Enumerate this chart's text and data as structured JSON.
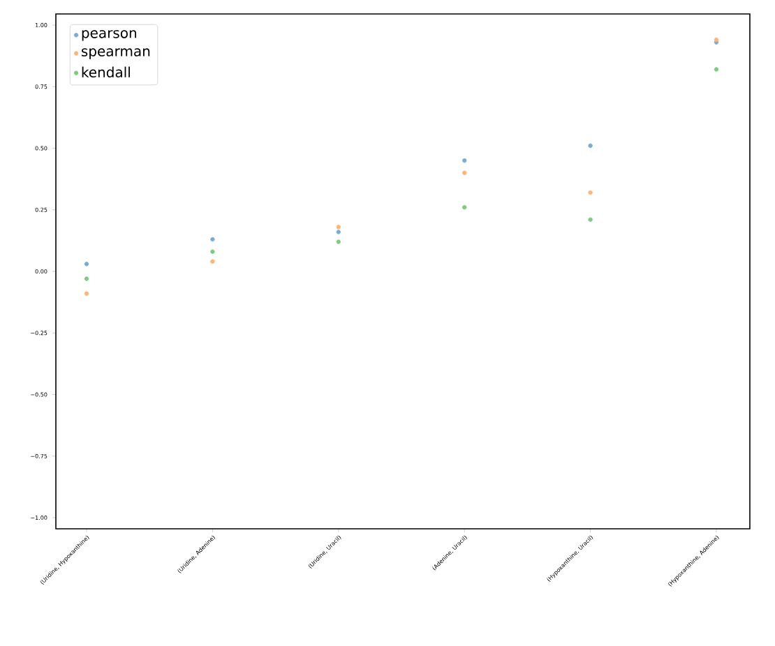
{
  "chart_data": {
    "type": "scatter",
    "categories": [
      "(Uridine, Hypoxanthine)",
      "(Uridine, Adenine)",
      "(Uridine, Uracil)",
      "(Adenine, Uracil)",
      "(Hypoxanthine, Uracil)",
      "(Hypoxanthine, Adenine)"
    ],
    "series": [
      {
        "name": "pearson",
        "color": "#79acd3",
        "values": [
          0.03,
          0.13,
          0.16,
          0.45,
          0.51,
          0.93
        ]
      },
      {
        "name": "spearman",
        "color": "#ffb476",
        "values": [
          -0.09,
          0.04,
          0.18,
          0.4,
          0.32,
          0.94
        ]
      },
      {
        "name": "kendall",
        "color": "#80c980",
        "values": [
          -0.03,
          0.08,
          0.12,
          0.26,
          0.21,
          0.82
        ]
      }
    ],
    "ylim": [
      -1.045,
      1.045
    ],
    "yticks": [
      {
        "value": -1,
        "label": "−1.00"
      },
      {
        "value": -0.75,
        "label": "−0.75"
      },
      {
        "value": -0.5,
        "label": "−0.50"
      },
      {
        "value": -0.25,
        "label": "−0.25"
      },
      {
        "value": 0,
        "label": "0.00"
      },
      {
        "value": 0.25,
        "label": "0.25"
      },
      {
        "value": 0.5,
        "label": "0.50"
      },
      {
        "value": 0.75,
        "label": "0.75"
      },
      {
        "value": 1,
        "label": "1.00"
      }
    ],
    "legend": "top left",
    "marker": "circle"
  }
}
